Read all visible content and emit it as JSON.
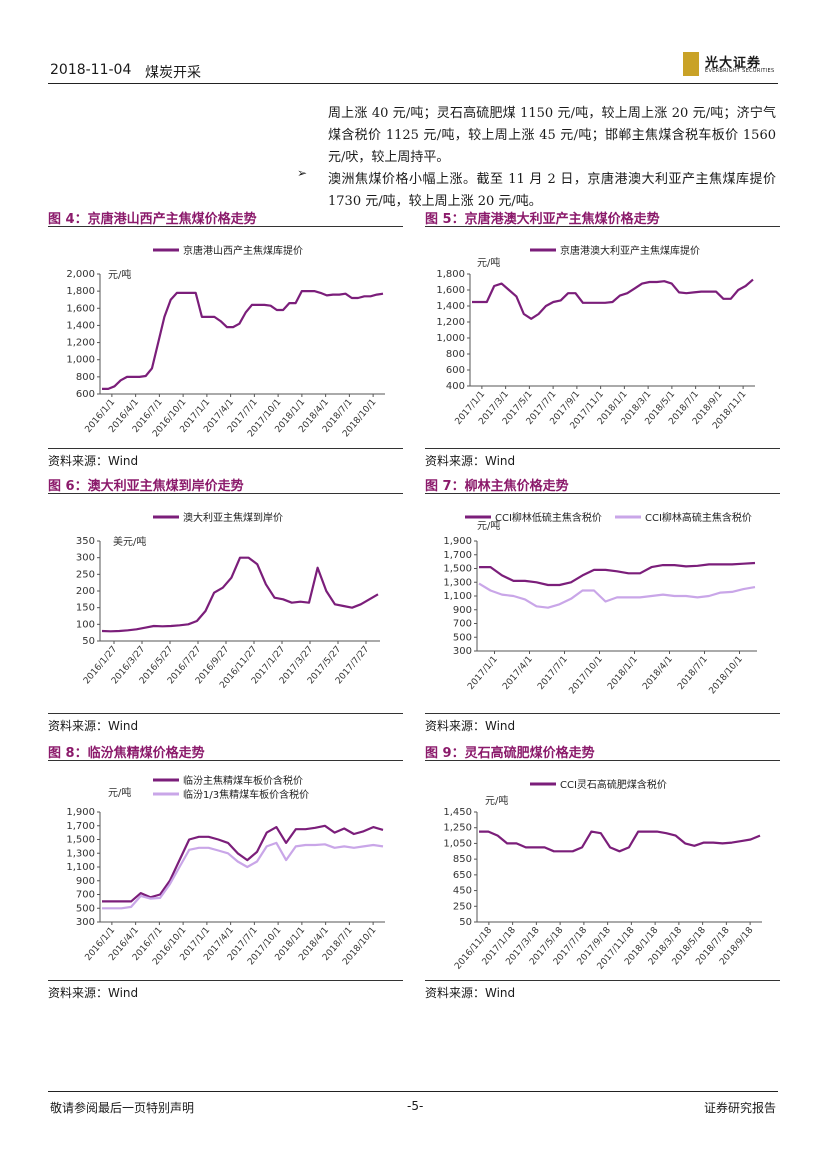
{
  "header": {
    "date": "2018-11-04",
    "section": "煤炭开采",
    "logo_cn": "光大证券",
    "logo_en": "EVERBRIGHT SECURITIES"
  },
  "body": {
    "para1": "周上涨 40 元/吨；灵石高硫肥煤 1150 元/吨，较上周上涨 20 元/吨；济宁气煤含税价 1125 元/吨，较上周上涨 45 元/吨；邯郸主焦煤含税车板价 1560 元/吠，较上周持平。",
    "bullet": "➢",
    "para2": "澳洲焦煤价格小幅上涨。截至 11 月 2 日，京唐港澳大利亚产主焦煤库提价 1730 元/吨，较上周上涨 20 元/吨。"
  },
  "source_label": "资料来源：Wind",
  "footer": {
    "left": "敬请参阅最后一页特别声明",
    "center": "-5-",
    "right": "证券研究报告"
  },
  "colors": {
    "dark": "#7b1e7a",
    "light": "#c9a6e8",
    "title": "#8b1a6b"
  },
  "figures": [
    {
      "title": "图 4：京唐港山西产主焦煤价格走势",
      "unit": "元/吨",
      "chart_data": {
        "type": "line",
        "ylim": [
          600,
          2000
        ],
        "yticks": [
          "2,000",
          "1,800",
          "1,600",
          "1,400",
          "1,200",
          "1,000",
          "800",
          "600"
        ],
        "xticks": [
          "2016/1/1",
          "2016/4/1",
          "2016/7/1",
          "2016/10/1",
          "2017/1/1",
          "2017/4/1",
          "2017/7/1",
          "2017/10/1",
          "2018/1/1",
          "2018/4/1",
          "2018/7/1",
          "2018/10/1"
        ],
        "series": [
          {
            "name": "京唐港山西产主焦煤库提价",
            "color": "dark",
            "values": [
              660,
              660,
              690,
              760,
              800,
              800,
              800,
              810,
              900,
              1200,
              1500,
              1700,
              1780,
              1780,
              1780,
              1780,
              1500,
              1500,
              1500,
              1450,
              1380,
              1380,
              1420,
              1550,
              1640,
              1640,
              1640,
              1630,
              1580,
              1580,
              1660,
              1660,
              1800,
              1800,
              1800,
              1780,
              1750,
              1760,
              1760,
              1770,
              1720,
              1720,
              1740,
              1740,
              1760,
              1770
            ]
          }
        ]
      }
    },
    {
      "title": "图 5：京唐港澳大利亚产主焦煤价格走势",
      "unit": "元/吨",
      "chart_data": {
        "type": "line",
        "ylim": [
          400,
          1800
        ],
        "yticks": [
          "1,800",
          "1,600",
          "1,400",
          "1,200",
          "1,000",
          "800",
          "600",
          "400"
        ],
        "xticks": [
          "2017/1/1",
          "2017/3/1",
          "2017/5/1",
          "2017/7/1",
          "2017/9/1",
          "2017/11/1",
          "2018/1/1",
          "2018/3/1",
          "2018/5/1",
          "2018/7/1",
          "2018/9/1",
          "2018/11/1"
        ],
        "series": [
          {
            "name": "京唐港澳大利亚产主焦煤库提价",
            "color": "dark",
            "values": [
              1450,
              1450,
              1450,
              1650,
              1680,
              1600,
              1520,
              1300,
              1240,
              1300,
              1400,
              1450,
              1470,
              1560,
              1560,
              1440,
              1440,
              1440,
              1440,
              1450,
              1530,
              1560,
              1620,
              1680,
              1700,
              1700,
              1710,
              1680,
              1570,
              1560,
              1570,
              1580,
              1580,
              1580,
              1490,
              1490,
              1600,
              1650,
              1730
            ]
          }
        ]
      }
    },
    {
      "title": "图 6：澳大利亚主焦煤到岸价走势",
      "unit": "美元/吨",
      "chart_data": {
        "type": "line",
        "ylim": [
          50,
          350
        ],
        "yticks": [
          "350",
          "300",
          "250",
          "200",
          "150",
          "100",
          "50"
        ],
        "xticks": [
          "2016/1/27",
          "2016/3/27",
          "2016/5/27",
          "2016/7/27",
          "2016/9/27",
          "2016/11/27",
          "2017/1/27",
          "2017/3/27",
          "2017/5/27",
          "2017/7/27"
        ],
        "series": [
          {
            "name": "澳大利亚主焦煤到岸价",
            "color": "dark",
            "values": [
              80,
              79,
              80,
              82,
              85,
              90,
              95,
              94,
              95,
              97,
              100,
              110,
              140,
              195,
              210,
              240,
              300,
              300,
              280,
              220,
              180,
              175,
              165,
              168,
              165,
              270,
              200,
              160,
              155,
              150,
              160,
              175,
              190
            ]
          }
        ]
      }
    },
    {
      "title": "图 7：柳林主焦价格走势",
      "unit": "元/吨",
      "chart_data": {
        "type": "line",
        "ylim": [
          300,
          1900
        ],
        "yticks": [
          "1,900",
          "1,700",
          "1,500",
          "1,300",
          "1,100",
          "900",
          "700",
          "500",
          "300"
        ],
        "xticks": [
          "2017/1/1",
          "2017/4/1",
          "2017/7/1",
          "2017/10/1",
          "2018/1/1",
          "2018/4/1",
          "2018/7/1",
          "2018/10/1"
        ],
        "series": [
          {
            "name": "CCI柳林低硫主焦含税价",
            "color": "dark",
            "values": [
              1520,
              1520,
              1400,
              1320,
              1320,
              1300,
              1260,
              1260,
              1300,
              1400,
              1480,
              1480,
              1460,
              1430,
              1430,
              1520,
              1550,
              1550,
              1530,
              1540,
              1560,
              1560,
              1560,
              1570,
              1580
            ]
          },
          {
            "name": "CCI柳林高硫主焦含税价",
            "color": "light",
            "values": [
              1280,
              1180,
              1120,
              1100,
              1050,
              950,
              930,
              980,
              1060,
              1180,
              1180,
              1020,
              1080,
              1080,
              1080,
              1100,
              1120,
              1100,
              1100,
              1080,
              1100,
              1150,
              1160,
              1200,
              1230
            ]
          }
        ]
      }
    },
    {
      "title": "图 8：临汾焦精煤价格走势",
      "unit": "元/吨",
      "chart_data": {
        "type": "line",
        "ylim": [
          300,
          1900
        ],
        "yticks": [
          "1,900",
          "1,700",
          "1,500",
          "1,300",
          "1,100",
          "900",
          "700",
          "500",
          "300"
        ],
        "xticks": [
          "2016/1/1",
          "2016/4/1",
          "2016/7/1",
          "2016/10/1",
          "2017/1/1",
          "2017/4/1",
          "2017/7/1",
          "2017/10/1",
          "2018/1/1",
          "2018/4/1",
          "2018/7/1",
          "2018/10/1"
        ],
        "series": [
          {
            "name": "临汾主焦精煤车板价含税价",
            "color": "dark",
            "values": [
              600,
              600,
              600,
              600,
              720,
              660,
              700,
              900,
              1200,
              1500,
              1540,
              1540,
              1500,
              1450,
              1300,
              1200,
              1320,
              1600,
              1680,
              1450,
              1650,
              1650,
              1670,
              1700,
              1600,
              1660,
              1580,
              1620,
              1680,
              1640
            ]
          },
          {
            "name": "临汾1/3焦精煤车板价含税价",
            "color": "light",
            "values": [
              500,
              500,
              500,
              520,
              680,
              640,
              650,
              850,
              1100,
              1350,
              1380,
              1380,
              1340,
              1300,
              1180,
              1100,
              1180,
              1400,
              1450,
              1200,
              1400,
              1420,
              1420,
              1430,
              1380,
              1400,
              1380,
              1400,
              1420,
              1400
            ]
          }
        ]
      }
    },
    {
      "title": "图 9：灵石高硫肥煤价格走势",
      "unit": "元/吨",
      "chart_data": {
        "type": "line",
        "ylim": [
          50,
          1450
        ],
        "yticks": [
          "1,450",
          "1,250",
          "1,050",
          "850",
          "650",
          "450",
          "250",
          "50"
        ],
        "xticks": [
          "2016/11/18",
          "2017/1/18",
          "2017/3/18",
          "2017/5/18",
          "2017/7/18",
          "2017/9/18",
          "2017/11/18",
          "2018/1/18",
          "2018/3/18",
          "2018/5/18",
          "2018/7/18",
          "2018/9/18"
        ],
        "series": [
          {
            "name": "CCI灵石高硫肥煤含税价",
            "color": "dark",
            "values": [
              1200,
              1200,
              1150,
              1050,
              1050,
              1000,
              1000,
              1000,
              950,
              950,
              950,
              1000,
              1200,
              1180,
              1000,
              950,
              1000,
              1200,
              1200,
              1200,
              1180,
              1150,
              1050,
              1020,
              1060,
              1060,
              1050,
              1060,
              1080,
              1100,
              1150
            ]
          }
        ]
      }
    }
  ]
}
